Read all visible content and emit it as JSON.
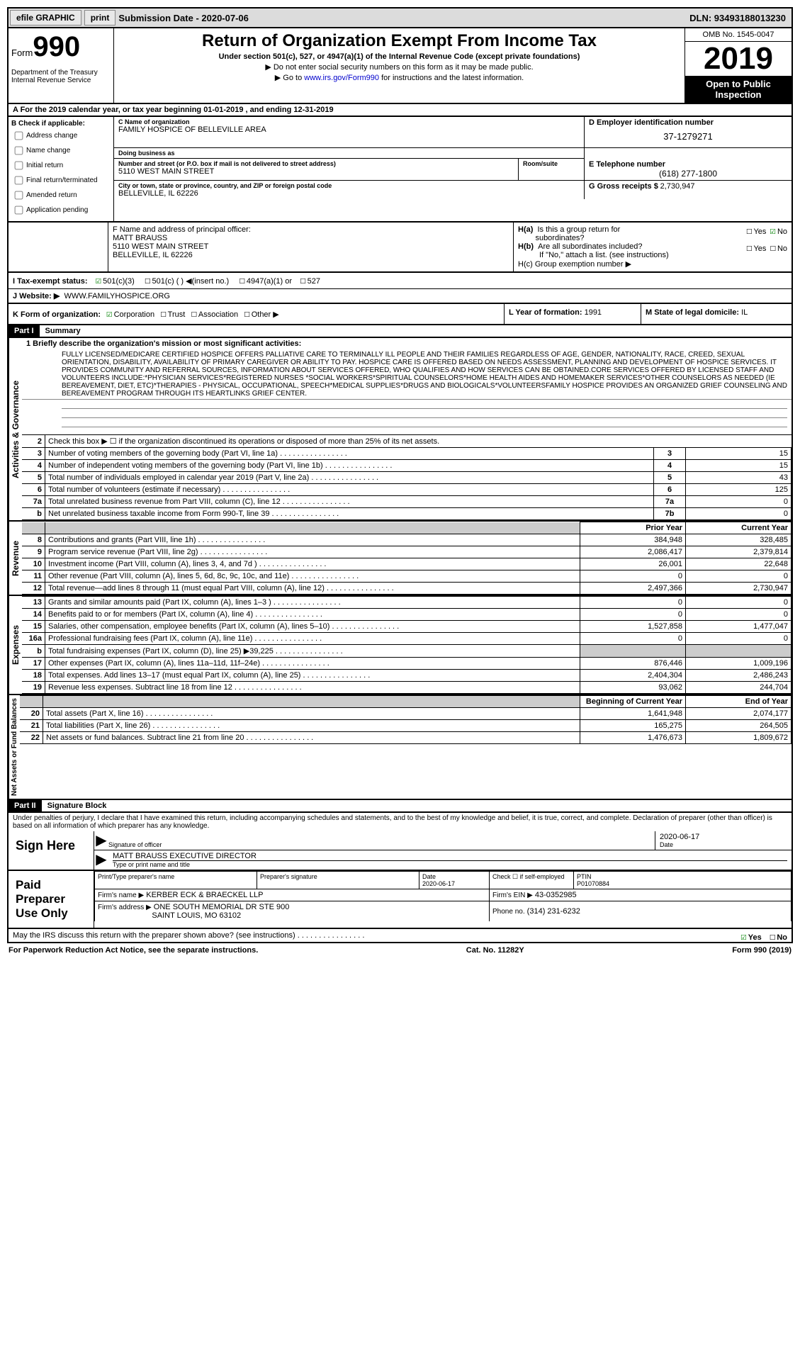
{
  "topbar": {
    "efile": "efile GRAPHIC",
    "print": "print",
    "submission": "Submission Date - 2020-07-06",
    "dln": "DLN: 93493188013230"
  },
  "header": {
    "form_label": "Form",
    "form_number": "990",
    "dept1": "Department of the Treasury",
    "dept2": "Internal Revenue Service",
    "title": "Return of Organization Exempt From Income Tax",
    "sub1": "Under section 501(c), 527, or 4947(a)(1) of the Internal Revenue Code (except private foundations)",
    "sub2": "▶ Do not enter social security numbers on this form as it may be made public.",
    "sub3_pre": "▶ Go to ",
    "sub3_link": "www.irs.gov/Form990",
    "sub3_post": " for instructions and the latest information.",
    "omb": "OMB No. 1545-0047",
    "year": "2019",
    "inspect1": "Open to Public",
    "inspect2": "Inspection"
  },
  "row_a": "A For the 2019 calendar year, or tax year beginning 01-01-2019   , and ending 12-31-2019",
  "col_b": {
    "title": "B Check if applicable:",
    "opts": [
      "Address change",
      "Name change",
      "Initial return",
      "Final return/terminated",
      "Amended return",
      "Application pending"
    ]
  },
  "c": {
    "name_lbl": "C Name of organization",
    "name": "FAMILY HOSPICE OF BELLEVILLE AREA",
    "dba_lbl": "Doing business as",
    "dba": "",
    "addr_lbl": "Number and street (or P.O. box if mail is not delivered to street address)",
    "addr": "5110 WEST MAIN STREET",
    "room_lbl": "Room/suite",
    "city_lbl": "City or town, state or province, country, and ZIP or foreign postal code",
    "city": "BELLEVILLE, IL  62226"
  },
  "d": {
    "lbl": "D Employer identification number",
    "val": "37-1279271"
  },
  "e": {
    "lbl": "E Telephone number",
    "val": "(618) 277-1800"
  },
  "g": {
    "lbl": "G Gross receipts $",
    "val": "2,730,947"
  },
  "f": {
    "lbl": "F  Name and address of principal officer:",
    "name": "MATT BRAUSS",
    "addr1": "5110 WEST MAIN STREET",
    "addr2": "BELLEVILLE, IL  62226"
  },
  "h": {
    "a_lbl": "H(a)  Is this a group return for subordinates?",
    "a_yes": "Yes",
    "a_no": "No",
    "b_lbl": "H(b)  Are all subordinates included?",
    "b_yes": "Yes",
    "b_no": "No",
    "b_note": "If \"No,\" attach a list. (see instructions)",
    "c_lbl": "H(c)  Group exemption number ▶"
  },
  "i": {
    "lbl": "I   Tax-exempt status:",
    "o1": "501(c)(3)",
    "o2": "501(c) (  ) ◀(insert no.)",
    "o3": "4947(a)(1) or",
    "o4": "527"
  },
  "j": {
    "lbl": "J   Website: ▶",
    "val": "WWW.FAMILYHOSPICE.ORG"
  },
  "k": {
    "lbl": "K Form of organization:",
    "o1": "Corporation",
    "o2": "Trust",
    "o3": "Association",
    "o4": "Other ▶"
  },
  "l": {
    "lbl": "L Year of formation:",
    "val": "1991"
  },
  "m": {
    "lbl": "M State of legal domicile:",
    "val": "IL"
  },
  "part1": {
    "hdr": "Part I",
    "title": "Summary"
  },
  "mission_lbl": "1   Briefly describe the organization's mission or most significant activities:",
  "mission": "FULLY LICENSED/MEDICARE CERTIFIED HOSPICE OFFERS PALLIATIVE CARE TO TERMINALLY ILL PEOPLE AND THEIR FAMILIES REGARDLESS OF AGE, GENDER, NATIONALITY, RACE, CREED, SEXUAL ORIENTATION, DISABILITY, AVAILABILITY OF PRIMARY CAREGIVER OR ABILITY TO PAY. HOSPICE CARE IS OFFERED BASED ON NEEDS ASSESSMENT, PLANNING AND DEVELOPMENT OF HOSPICE SERVICES. IT PROVIDES COMMUNITY AND REFERRAL SOURCES, INFORMATION ABOUT SERVICES OFFERED, WHO QUALIFIES AND HOW SERVICES CAN BE OBTAINED.CORE SERVICES OFFERED BY LICENSED STAFF AND VOLUNTEERS INCLUDE:*PHYSICIAN SERVICES*REGISTERED NURSES *SOCIAL WORKERS*SPIRITUAL COUNSELORS*HOME HEALTH AIDES AND HOMEMAKER SERVICES*OTHER COUNSELORS AS NEEDED (IE BEREAVEMENT, DIET, ETC)*THERAPIES - PHYSICAL, OCCUPATIONAL, SPEECH*MEDICAL SUPPLIES*DRUGS AND BIOLOGICALS*VOLUNTEERSFAMILY HOSPICE PROVIDES AN ORGANIZED GRIEF COUNSELING AND BEREAVEMENT PROGRAM THROUGH ITS HEARTLINKS GRIEF CENTER.",
  "gov_label": "Activities & Governance",
  "rev_label": "Revenue",
  "exp_label": "Expenses",
  "net_label": "Net Assets or Fund Balances",
  "lines_gov": [
    {
      "n": "2",
      "t": "Check this box ▶ ☐ if the organization discontinued its operations or disposed of more than 25% of its net assets.",
      "lab": "",
      "v": ""
    },
    {
      "n": "3",
      "t": "Number of voting members of the governing body (Part VI, line 1a)",
      "lab": "3",
      "v": "15"
    },
    {
      "n": "4",
      "t": "Number of independent voting members of the governing body (Part VI, line 1b)",
      "lab": "4",
      "v": "15"
    },
    {
      "n": "5",
      "t": "Total number of individuals employed in calendar year 2019 (Part V, line 2a)",
      "lab": "5",
      "v": "43"
    },
    {
      "n": "6",
      "t": "Total number of volunteers (estimate if necessary)",
      "lab": "6",
      "v": "125"
    },
    {
      "n": "7a",
      "t": "Total unrelated business revenue from Part VIII, column (C), line 12",
      "lab": "7a",
      "v": "0"
    },
    {
      "n": "b",
      "t": "Net unrelated business taxable income from Form 990-T, line 39",
      "lab": "7b",
      "v": "0"
    }
  ],
  "col_hdrs": {
    "prior": "Prior Year",
    "current": "Current Year"
  },
  "lines_rev": [
    {
      "n": "8",
      "t": "Contributions and grants (Part VIII, line 1h)",
      "p": "384,948",
      "c": "328,485"
    },
    {
      "n": "9",
      "t": "Program service revenue (Part VIII, line 2g)",
      "p": "2,086,417",
      "c": "2,379,814"
    },
    {
      "n": "10",
      "t": "Investment income (Part VIII, column (A), lines 3, 4, and 7d )",
      "p": "26,001",
      "c": "22,648"
    },
    {
      "n": "11",
      "t": "Other revenue (Part VIII, column (A), lines 5, 6d, 8c, 9c, 10c, and 11e)",
      "p": "0",
      "c": "0"
    },
    {
      "n": "12",
      "t": "Total revenue—add lines 8 through 11 (must equal Part VIII, column (A), line 12)",
      "p": "2,497,366",
      "c": "2,730,947"
    }
  ],
  "lines_exp": [
    {
      "n": "13",
      "t": "Grants and similar amounts paid (Part IX, column (A), lines 1–3 )",
      "p": "0",
      "c": "0"
    },
    {
      "n": "14",
      "t": "Benefits paid to or for members (Part IX, column (A), line 4)",
      "p": "0",
      "c": "0"
    },
    {
      "n": "15",
      "t": "Salaries, other compensation, employee benefits (Part IX, column (A), lines 5–10)",
      "p": "1,527,858",
      "c": "1,477,047"
    },
    {
      "n": "16a",
      "t": "Professional fundraising fees (Part IX, column (A), line 11e)",
      "p": "0",
      "c": "0"
    },
    {
      "n": "b",
      "t": "Total fundraising expenses (Part IX, column (D), line 25) ▶39,225",
      "p": "shade",
      "c": "shade"
    },
    {
      "n": "17",
      "t": "Other expenses (Part IX, column (A), lines 11a–11d, 11f–24e)",
      "p": "876,446",
      "c": "1,009,196"
    },
    {
      "n": "18",
      "t": "Total expenses. Add lines 13–17 (must equal Part IX, column (A), line 25)",
      "p": "2,404,304",
      "c": "2,486,243"
    },
    {
      "n": "19",
      "t": "Revenue less expenses. Subtract line 18 from line 12",
      "p": "93,062",
      "c": "244,704"
    }
  ],
  "col_hdrs2": {
    "begin": "Beginning of Current Year",
    "end": "End of Year"
  },
  "lines_net": [
    {
      "n": "20",
      "t": "Total assets (Part X, line 16)",
      "p": "1,641,948",
      "c": "2,074,177"
    },
    {
      "n": "21",
      "t": "Total liabilities (Part X, line 26)",
      "p": "165,275",
      "c": "264,505"
    },
    {
      "n": "22",
      "t": "Net assets or fund balances. Subtract line 21 from line 20",
      "p": "1,476,673",
      "c": "1,809,672"
    }
  ],
  "part2": {
    "hdr": "Part II",
    "title": "Signature Block"
  },
  "penalties": "Under penalties of perjury, I declare that I have examined this return, including accompanying schedules and statements, and to the best of my knowledge and belief, it is true, correct, and complete. Declaration of preparer (other than officer) is based on all information of which preparer has any knowledge.",
  "sign": {
    "here": "Sign Here",
    "sig_lbl": "Signature of officer",
    "date": "2020-06-17",
    "date_lbl": "Date",
    "name": "MATT BRAUSS  EXECUTIVE DIRECTOR",
    "name_lbl": "Type or print name and title"
  },
  "paid": {
    "title": "Paid Preparer Use Only",
    "h1": "Print/Type preparer's name",
    "h2": "Preparer's signature",
    "h3": "Date",
    "date": "2020-06-17",
    "h4": "Check ☐ if self-employed",
    "h5": "PTIN",
    "ptin": "P01070884",
    "firm_lbl": "Firm's name    ▶",
    "firm": "KERBER ECK & BRAECKEL LLP",
    "ein_lbl": "Firm's EIN ▶",
    "ein": "43-0352985",
    "addr_lbl": "Firm's address ▶",
    "addr1": "ONE SOUTH MEMORIAL DR STE 900",
    "addr2": "SAINT LOUIS, MO  63102",
    "phone_lbl": "Phone no.",
    "phone": "(314) 231-6232"
  },
  "discuss": {
    "q": "May the IRS discuss this return with the preparer shown above? (see instructions)",
    "yes": "Yes",
    "no": "No"
  },
  "footer": {
    "left": "For Paperwork Reduction Act Notice, see the separate instructions.",
    "mid": "Cat. No. 11282Y",
    "right_pre": "Form ",
    "right_bold": "990",
    "right_post": " (2019)"
  }
}
